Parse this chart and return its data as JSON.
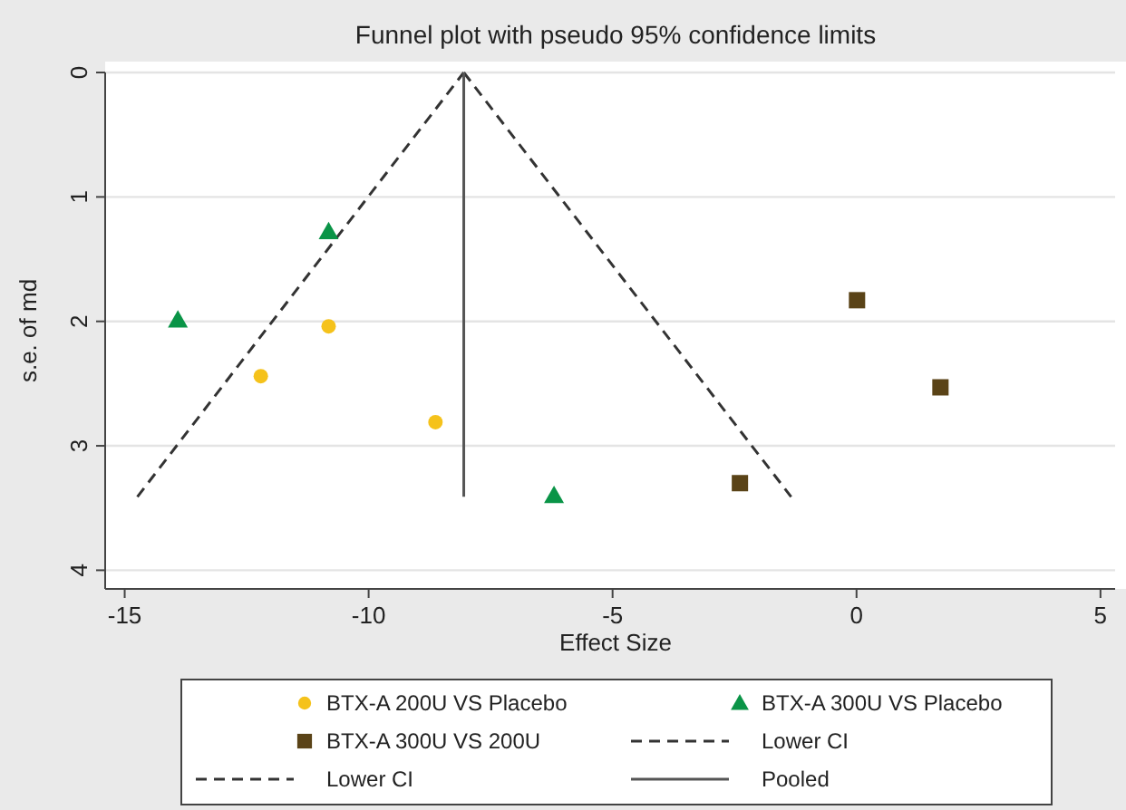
{
  "chart_data": {
    "type": "scatter",
    "title": "Funnel plot with pseudo 95% confidence limits",
    "xlabel": "Effect Size",
    "ylabel": "s.e. of md",
    "xlim": [
      -15.4,
      5.3
    ],
    "xticks": [
      -15,
      -10,
      -5,
      0,
      5
    ],
    "ylim": [
      4.15,
      0
    ],
    "yticks": [
      0,
      1,
      2,
      3,
      4
    ],
    "grid": "y",
    "legend": "bottom",
    "series": [
      {
        "name": "BTX-A 200U VS Placebo",
        "marker": "circle",
        "color": "#f5c21b",
        "x": [
          -10.82,
          -12.21,
          -8.63
        ],
        "values": [
          2.04,
          2.44,
          2.81
        ]
      },
      {
        "name": "BTX-A 300U VS Placebo",
        "marker": "triangle",
        "color": "#0a9447",
        "x": [
          -10.82,
          -13.91,
          -6.2
        ],
        "values": [
          1.28,
          1.99,
          3.4
        ]
      },
      {
        "name": "BTX-A 300U VS 200U",
        "marker": "square",
        "color": "#5a4317",
        "x": [
          0.01,
          1.72,
          -2.39
        ],
        "values": [
          1.83,
          2.53,
          3.3
        ]
      },
      {
        "name": "Lower CI",
        "type": "line",
        "line_style": "dashed",
        "color": "#333333",
        "x": [
          -8.05,
          -1.34
        ],
        "values": [
          0,
          3.41
        ]
      },
      {
        "name": "Lower CI",
        "type": "line",
        "line_style": "dashed",
        "color": "#333333",
        "x": [
          -14.74,
          -8.05
        ],
        "values": [
          3.41,
          0
        ]
      },
      {
        "name": "Pooled",
        "type": "line",
        "line_style": "solid",
        "color": "#555555",
        "x": [
          -8.05,
          -8.05
        ],
        "values": [
          0,
          3.41
        ]
      }
    ]
  }
}
